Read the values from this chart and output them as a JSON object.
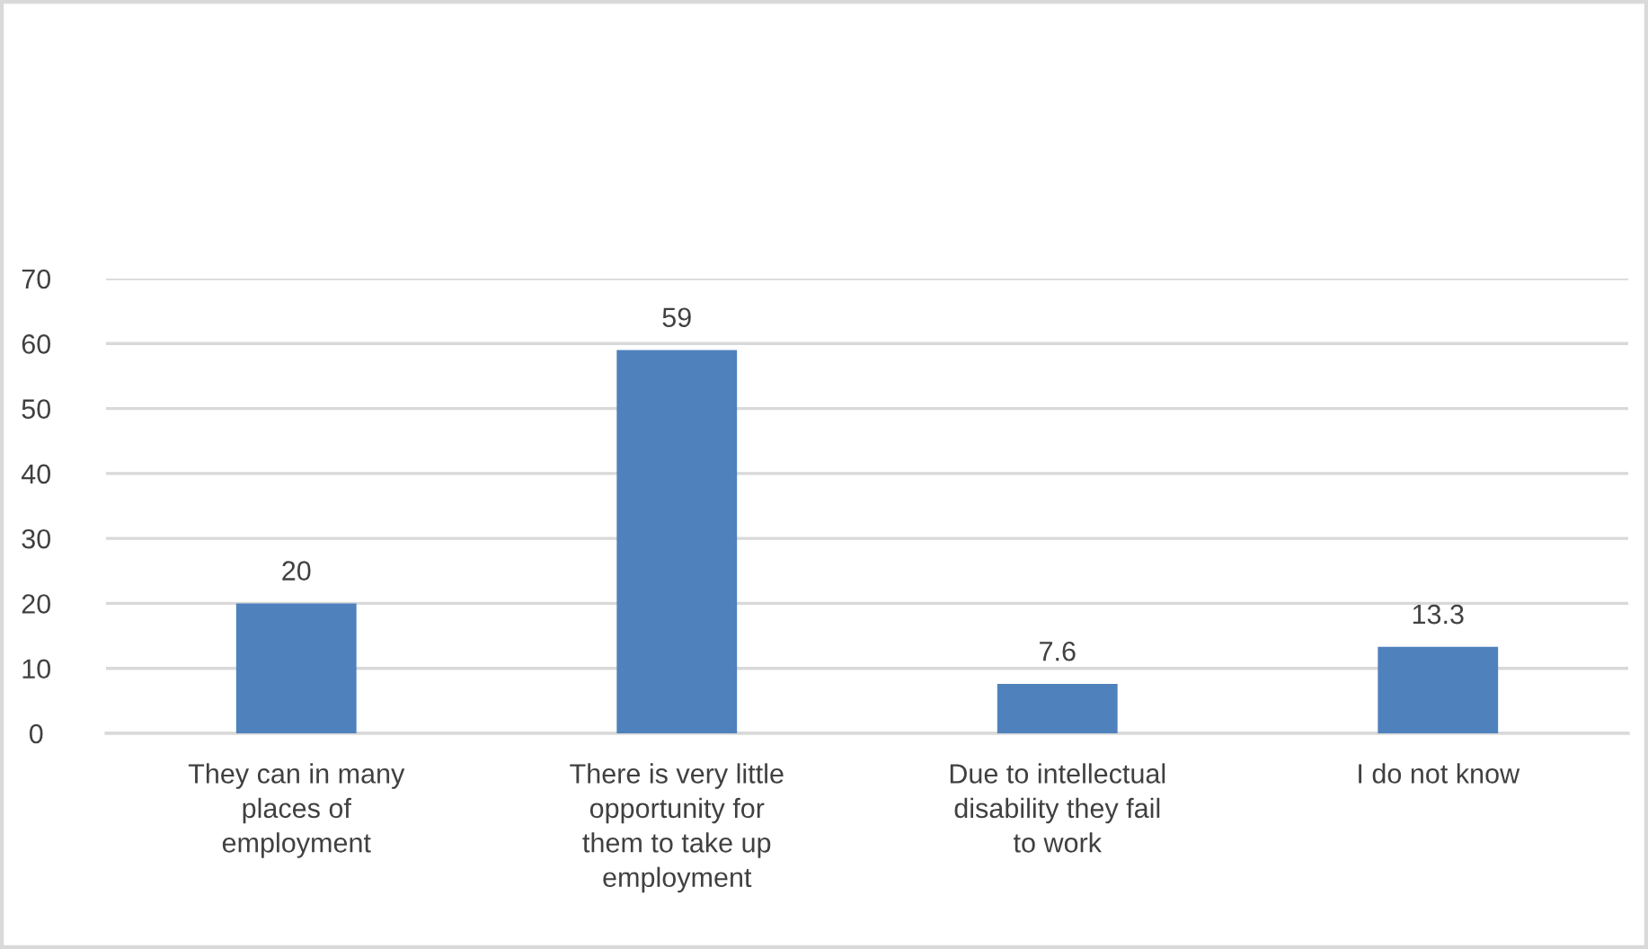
{
  "chart_data": {
    "type": "bar",
    "categories": [
      "They can in many\nplaces of\nemployment",
      "There is very little\nopportunity for\nthem to take up\nemployment",
      "Due to intellectual\ndisability they fail\nto work",
      "I do not know"
    ],
    "values": [
      20,
      59,
      7.6,
      13.3
    ],
    "color": "#4f81bd",
    "ylim": [
      0,
      70
    ],
    "yticks": [
      0,
      10,
      20,
      30,
      40,
      50,
      60,
      70
    ],
    "grid": "y",
    "data_labels": true
  }
}
